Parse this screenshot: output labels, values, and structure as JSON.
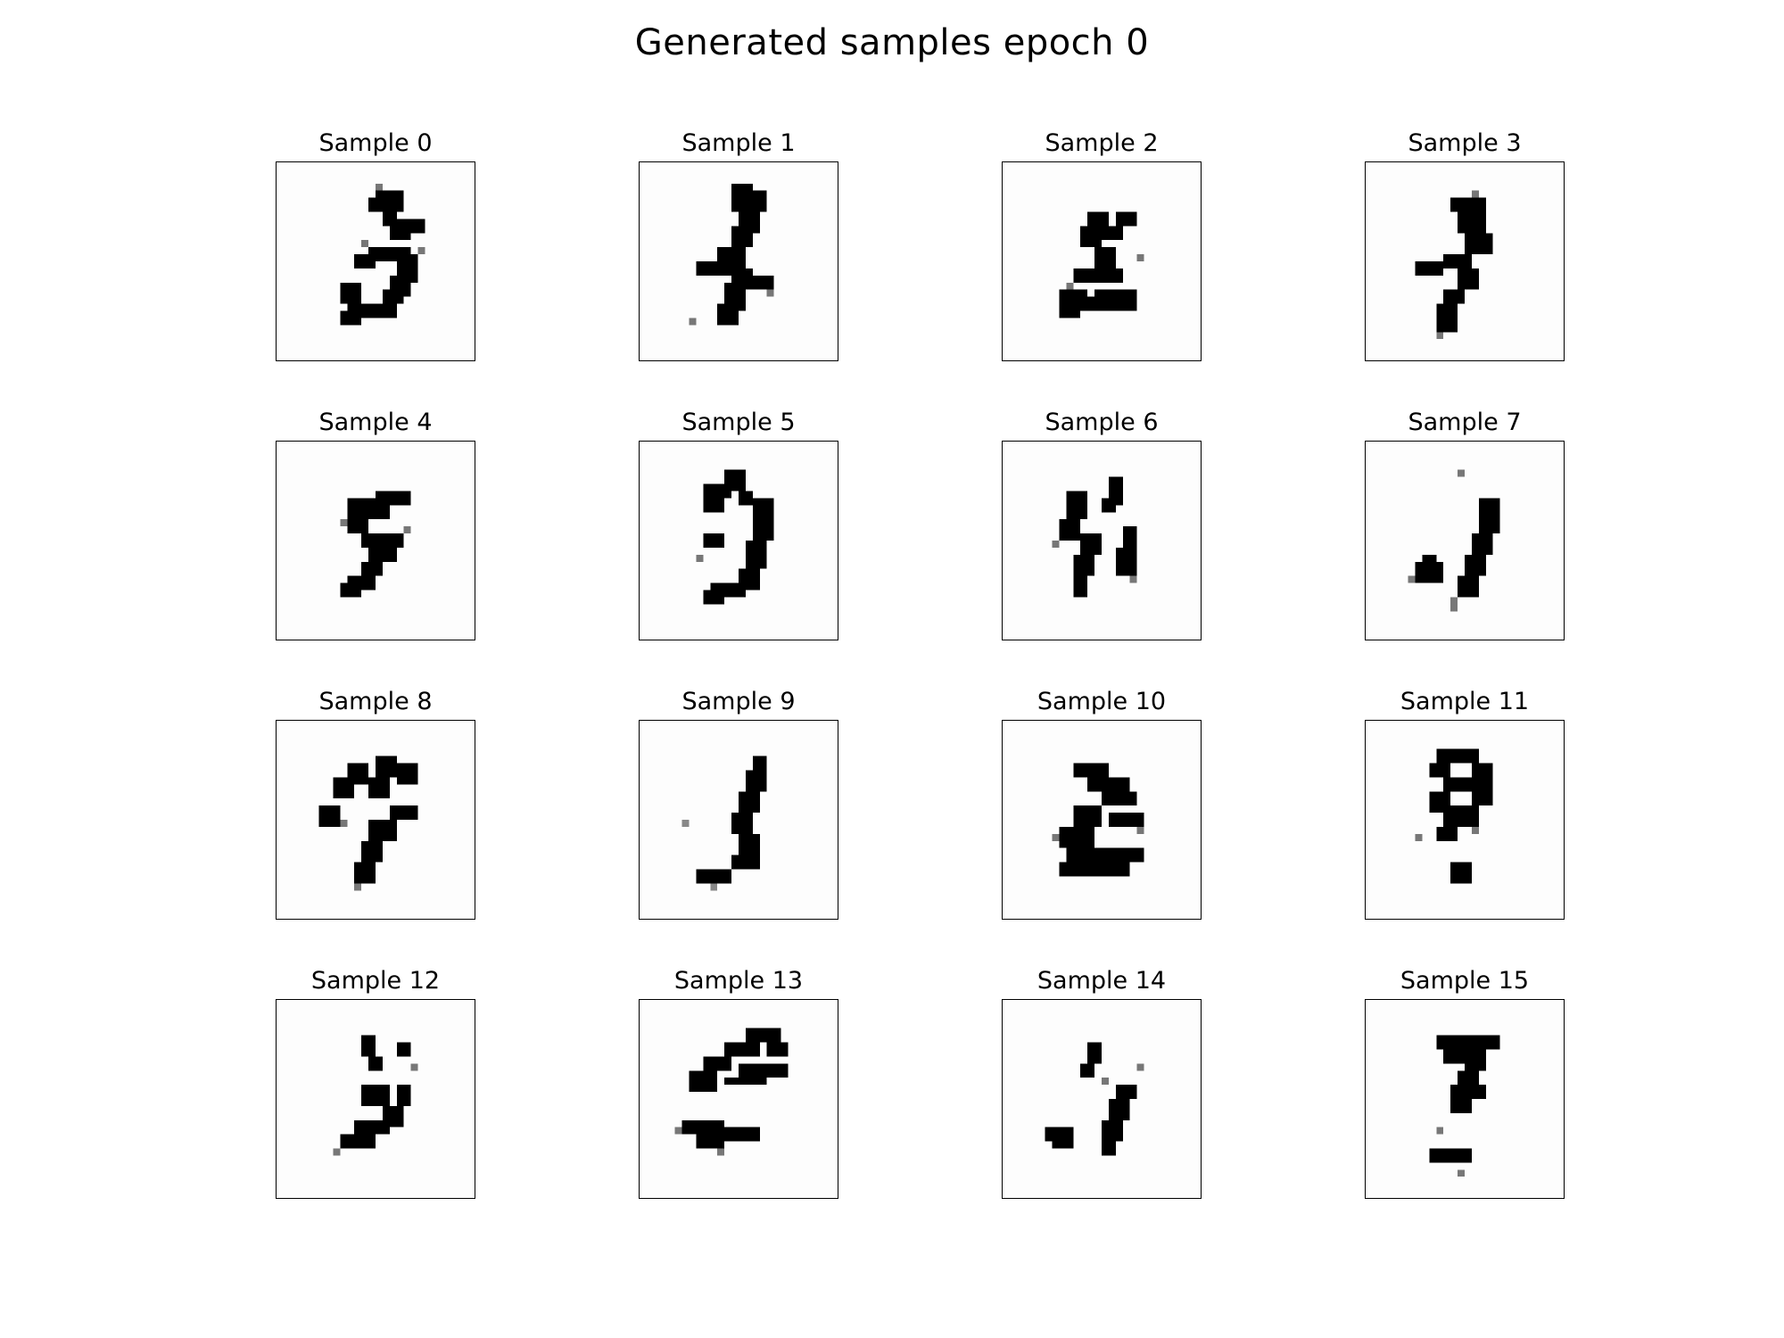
{
  "figure": {
    "title": "Generated samples epoch 0"
  },
  "samples": [
    {
      "title": "Sample 0"
    },
    {
      "title": "Sample 1"
    },
    {
      "title": "Sample 2"
    },
    {
      "title": "Sample 3"
    },
    {
      "title": "Sample 4"
    },
    {
      "title": "Sample 5"
    },
    {
      "title": "Sample 6"
    },
    {
      "title": "Sample 7"
    },
    {
      "title": "Sample 8"
    },
    {
      "title": "Sample 9"
    },
    {
      "title": "Sample 10"
    },
    {
      "title": "Sample 11"
    },
    {
      "title": "Sample 12"
    },
    {
      "title": "Sample 13"
    },
    {
      "title": "Sample 14"
    },
    {
      "title": "Sample 15"
    }
  ],
  "colors": {
    "ink": "#000000",
    "background": "#ffffff",
    "border": "#000000"
  }
}
